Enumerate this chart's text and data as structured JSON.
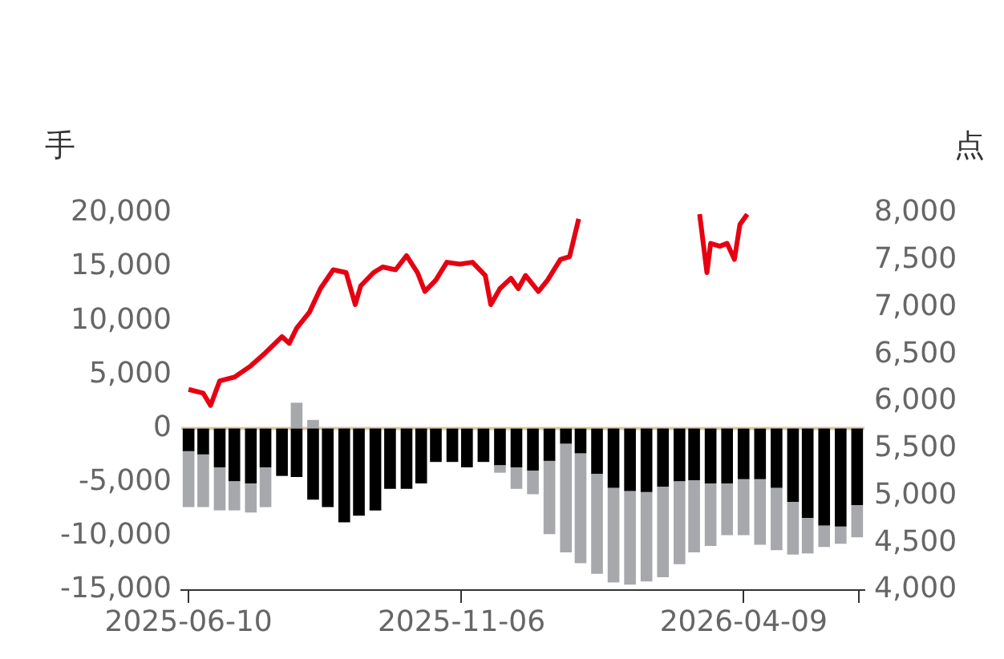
{
  "chart_data": {
    "type": "bar",
    "ylabel": "手",
    "y2label": "点",
    "stacked": true,
    "marker": "none",
    "legend": false,
    "grid": false,
    "x": [
      "2025-06-10",
      "2025-06-18",
      "2025-06-27",
      "2025-07-05",
      "2025-07-14",
      "2025-07-22",
      "2025-07-31",
      "2025-08-08",
      "2025-08-17",
      "2025-08-25",
      "2025-09-03",
      "2025-09-11",
      "2025-09-20",
      "2025-09-28",
      "2025-10-07",
      "2025-10-15",
      "2025-10-23",
      "2025-11-01",
      "2025-11-09",
      "2025-11-18",
      "2025-11-27",
      "2025-12-06",
      "2025-12-15",
      "2025-12-24",
      "2026-01-02",
      "2026-01-10",
      "2026-01-19",
      "2026-01-28",
      "2026-02-06",
      "2026-02-15",
      "2026-02-24",
      "2026-03-05",
      "2026-03-13",
      "2026-03-22",
      "2026-03-31",
      "2026-04-09",
      "2026-04-18",
      "2026-04-27",
      "2026-05-06",
      "2026-05-14",
      "2026-05-23",
      "2026-06-01",
      "2026-06-10"
    ],
    "series": [
      {
        "color": "#000000",
        "values": [
          -2100,
          -2400,
          -3600,
          -4900,
          -5100,
          -3600,
          -4400,
          -4500,
          -6600,
          -7300,
          -8700,
          -8100,
          -7600,
          -5600,
          -5600,
          -5100,
          -3100,
          -3100,
          -3600,
          -3100,
          -3400,
          -3600,
          -3900,
          -3000,
          -1400,
          -2300,
          -4200,
          -5500,
          -5800,
          -5900,
          -5400,
          -4900,
          -4800,
          -5100,
          -5100,
          -4700,
          -4700,
          -5500,
          -6800,
          -8300,
          -9000,
          -9100,
          -7100
        ]
      },
      {
        "color": "#a6a8ab",
        "values": [
          -5200,
          -4900,
          -4000,
          -2700,
          -2700,
          -3700,
          0,
          2400,
          800,
          0,
          0,
          0,
          0,
          0,
          0,
          0,
          0,
          0,
          0,
          0,
          -700,
          -2000,
          -2200,
          -6800,
          -10100,
          -10200,
          -9300,
          -8800,
          -8700,
          -8300,
          -8400,
          -7700,
          -6700,
          -5800,
          -4800,
          -5200,
          -6100,
          -5800,
          -4900,
          -3300,
          -2000,
          -1600,
          -3000
        ]
      },
      {
        "type": "line",
        "axis": "y2",
        "color": "#e60012",
        "line_style": "solid",
        "x": [
          "2025-06-10",
          "2025-06-18",
          "2025-06-22",
          "2025-06-27",
          "2025-07-05",
          "2025-07-14",
          "2025-07-22",
          "2025-07-31",
          "2025-08-04",
          "2025-08-08",
          "2025-08-15",
          "2025-08-21",
          "2025-08-28",
          "2025-09-04",
          "2025-09-09",
          "2025-09-12",
          "2025-09-19",
          "2025-09-24",
          "2025-10-01",
          "2025-10-07",
          "2025-10-13",
          "2025-10-17",
          "2025-10-23",
          "2025-10-29",
          "2025-11-05",
          "2025-11-12",
          "2025-11-19",
          "2025-11-22",
          "2025-11-27",
          "2025-12-03",
          "2025-12-07",
          "2025-12-11",
          "2025-12-18",
          "2025-12-23",
          "2025-12-30",
          "2026-01-04",
          "2026-01-09",
          "2026-02-10",
          "2026-03-16",
          "2026-03-20",
          "2026-03-22",
          "2026-03-27",
          "2026-03-31",
          "2026-04-04",
          "2026-04-07",
          "2026-04-11"
        ],
        "values": [
          6130,
          6090,
          5960,
          6220,
          6260,
          6380,
          6520,
          6690,
          6620,
          6780,
          6950,
          7200,
          7400,
          7370,
          7030,
          7230,
          7370,
          7430,
          7400,
          7550,
          7370,
          7170,
          7290,
          7480,
          7460,
          7480,
          7340,
          7030,
          7200,
          7310,
          7200,
          7340,
          7170,
          7290,
          7510,
          7540,
          7940,
          null,
          7990,
          7370,
          7680,
          7650,
          7680,
          7510,
          7880,
          7990
        ]
      }
    ],
    "xlim": [
      "2025-06-06",
      "2026-06-14"
    ],
    "xticks": [
      "2025-06-10",
      "2025-11-06",
      "2026-04-09",
      {
        "value": "2026-06-11",
        "label": null
      }
    ],
    "ylim": [
      -15000,
      20000
    ],
    "yticks": [
      {
        "value": -15000,
        "label": "-15,000"
      },
      {
        "value": -10000,
        "label": "-10,000"
      },
      {
        "value": -5000,
        "label": "-5,000"
      },
      0,
      {
        "value": 5000,
        "label": "5,000"
      },
      {
        "value": 10000,
        "label": "10,000"
      },
      {
        "value": 15000,
        "label": "15,000"
      },
      {
        "value": 20000,
        "label": "20,000"
      }
    ],
    "y2lim": [
      4000,
      8000
    ],
    "y2ticks": [
      {
        "value": 4000,
        "label": "4,000"
      },
      {
        "value": 4500,
        "label": "4,500"
      },
      {
        "value": 5000,
        "label": "5,000"
      },
      {
        "value": 5500,
        "label": "5,500"
      },
      {
        "value": 6000,
        "label": "6,000"
      },
      {
        "value": 6500,
        "label": "6,500"
      },
      {
        "value": 7000,
        "label": "7,000"
      },
      {
        "value": 7500,
        "label": "7,500"
      },
      {
        "value": 8000,
        "label": "8,000"
      }
    ],
    "ref_lines": [
      {
        "axis": "y",
        "value": 0,
        "color": "#d9c7a5"
      }
    ]
  }
}
